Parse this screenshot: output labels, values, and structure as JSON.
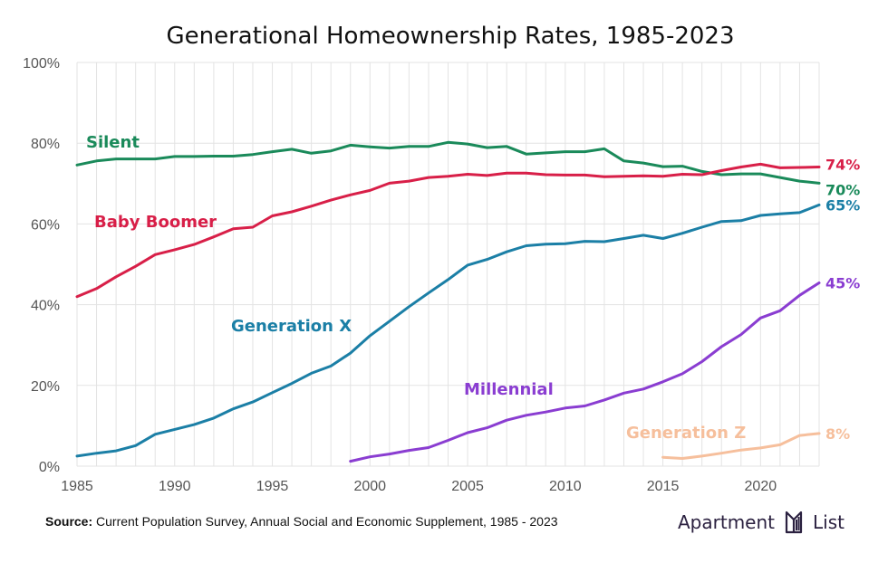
{
  "colors": {
    "silent": "#1a8a5a",
    "baby_boomer": "#d81f48",
    "generation_x": "#1b7fa6",
    "millennial": "#8a3dd1",
    "generation_z": "#f6bf9c",
    "brand": "#2b2140"
  },
  "chart_data": {
    "type": "line",
    "title": "Generational Homeownership Rates, 1985-2023",
    "xlabel": "",
    "ylabel": "",
    "xlim": [
      1985,
      2023
    ],
    "ylim": [
      0,
      100
    ],
    "x_ticks": [
      "1985",
      "1990",
      "1995",
      "2000",
      "2005",
      "2010",
      "2015",
      "2020"
    ],
    "y_ticks": [
      "0%",
      "20%",
      "40%",
      "60%",
      "80%",
      "100%"
    ],
    "grid": true,
    "series": [
      {
        "name": "Silent",
        "color_key": "silent",
        "end_label": "70%",
        "x": [
          1985,
          1986,
          1987,
          1988,
          1989,
          1990,
          1991,
          1992,
          1993,
          1994,
          1995,
          1996,
          1997,
          1998,
          1999,
          2000,
          2001,
          2002,
          2003,
          2004,
          2005,
          2006,
          2007,
          2008,
          2009,
          2010,
          2011,
          2012,
          2013,
          2014,
          2015,
          2016,
          2017,
          2018,
          2019,
          2020,
          2021,
          2022,
          2023
        ],
        "values": [
          74.6,
          75.6,
          76.1,
          76.1,
          76.1,
          76.7,
          76.7,
          76.8,
          76.8,
          77.2,
          77.9,
          78.5,
          77.5,
          78.1,
          79.5,
          79.1,
          78.8,
          79.2,
          79.2,
          80.2,
          79.8,
          78.9,
          79.2,
          77.3,
          77.6,
          77.9,
          77.9,
          78.6,
          75.6,
          75.1,
          74.2,
          74.3,
          73.0,
          72.2,
          72.4,
          72.4,
          71.5,
          70.6,
          70.1
        ]
      },
      {
        "name": "Baby Boomer",
        "color_key": "baby_boomer",
        "end_label": "74%",
        "x": [
          1985,
          1986,
          1987,
          1988,
          1989,
          1990,
          1991,
          1992,
          1993,
          1994,
          1995,
          1996,
          1997,
          1998,
          1999,
          2000,
          2001,
          2002,
          2003,
          2004,
          2005,
          2006,
          2007,
          2008,
          2009,
          2010,
          2011,
          2012,
          2013,
          2014,
          2015,
          2016,
          2017,
          2018,
          2019,
          2020,
          2021,
          2022,
          2023
        ],
        "values": [
          42.0,
          44.0,
          46.9,
          49.5,
          52.4,
          53.6,
          54.9,
          56.8,
          58.8,
          59.2,
          62.0,
          63.0,
          64.4,
          65.9,
          67.2,
          68.3,
          70.1,
          70.6,
          71.5,
          71.8,
          72.3,
          72.0,
          72.6,
          72.6,
          72.2,
          72.1,
          72.1,
          71.7,
          71.8,
          71.9,
          71.8,
          72.3,
          72.2,
          73.2,
          74.1,
          74.8,
          73.9,
          74.0,
          74.1
        ]
      },
      {
        "name": "Generation X",
        "color_key": "generation_x",
        "end_label": "65%",
        "x": [
          1985,
          1986,
          1987,
          1988,
          1989,
          1990,
          1991,
          1992,
          1993,
          1994,
          1995,
          1996,
          1997,
          1998,
          1999,
          2000,
          2001,
          2002,
          2003,
          2004,
          2005,
          2006,
          2007,
          2008,
          2009,
          2010,
          2011,
          2012,
          2013,
          2014,
          2015,
          2016,
          2017,
          2018,
          2019,
          2020,
          2021,
          2022,
          2023
        ],
        "values": [
          2.5,
          3.2,
          3.8,
          5.1,
          7.9,
          9.1,
          10.3,
          11.9,
          14.2,
          15.9,
          18.2,
          20.5,
          23.0,
          24.8,
          28.0,
          32.3,
          35.9,
          39.5,
          42.9,
          46.2,
          49.8,
          51.2,
          53.1,
          54.6,
          55.0,
          55.1,
          55.7,
          55.6,
          56.4,
          57.2,
          56.4,
          57.7,
          59.2,
          60.6,
          60.8,
          62.1,
          62.5,
          62.8,
          64.7
        ]
      },
      {
        "name": "Millennial",
        "color_key": "millennial",
        "end_label": "45%",
        "x": [
          1999,
          2000,
          2001,
          2002,
          2003,
          2004,
          2005,
          2006,
          2007,
          2008,
          2009,
          2010,
          2011,
          2012,
          2013,
          2014,
          2015,
          2016,
          2017,
          2018,
          2019,
          2020,
          2021,
          2022,
          2023
        ],
        "values": [
          1.2,
          2.3,
          3.0,
          3.9,
          4.6,
          6.4,
          8.3,
          9.5,
          11.4,
          12.6,
          13.4,
          14.4,
          14.9,
          16.4,
          18.1,
          19.1,
          20.9,
          22.9,
          25.9,
          29.6,
          32.6,
          36.7,
          38.5,
          42.3,
          45.4
        ]
      },
      {
        "name": "Generation Z",
        "color_key": "generation_z",
        "end_label": "8%",
        "x": [
          2015,
          2016,
          2017,
          2018,
          2019,
          2020,
          2021,
          2022,
          2023
        ],
        "values": [
          2.2,
          1.9,
          2.5,
          3.2,
          4.0,
          4.5,
          5.3,
          7.6,
          8.1
        ]
      }
    ]
  },
  "source": {
    "label": "Source:",
    "text": "Current Population Survey, Annual Social and Economic Supplement, 1985 - 2023"
  },
  "brand": {
    "left": "Apartment",
    "right": "List",
    "logo_icon": "apartment-list-logo-icon"
  }
}
